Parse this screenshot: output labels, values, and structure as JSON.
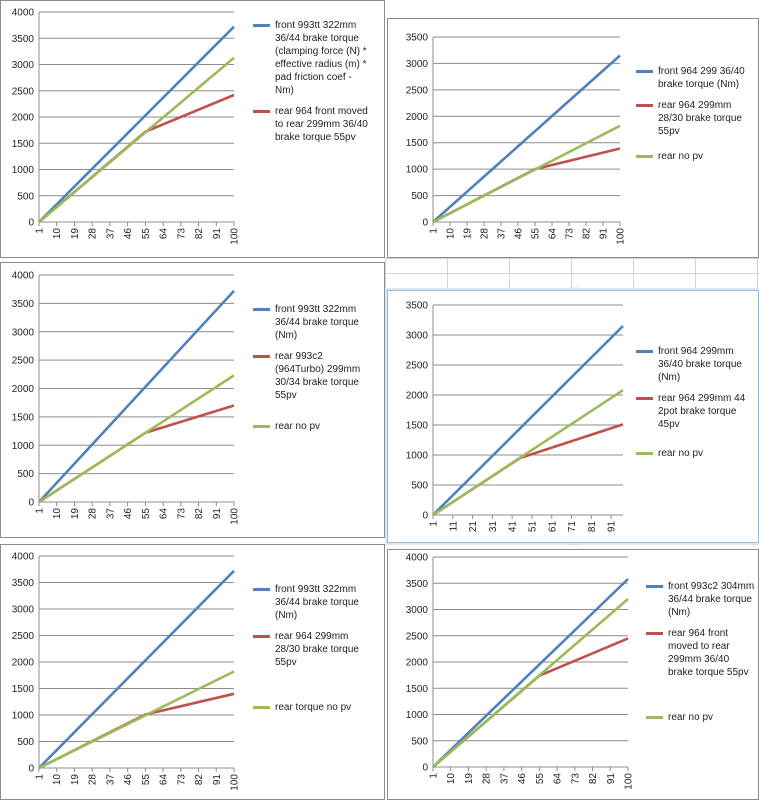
{
  "colors": {
    "front": "#4f81bd",
    "rear": "#c0504d",
    "nopv": "#9bbb59",
    "grid": "#8c8c8c"
  },
  "handle_glyph": "····",
  "chart_data": [
    {
      "type": "line",
      "ylim": [
        0,
        4000
      ],
      "yticks": [
        0,
        500,
        1000,
        1500,
        2000,
        2500,
        3000,
        3500,
        4000
      ],
      "xticks": [
        "1",
        "10",
        "19",
        "28",
        "37",
        "46",
        "55",
        "64",
        "73",
        "82",
        "91",
        "100"
      ],
      "x": [
        1,
        100
      ],
      "series": [
        {
          "name": "front 993tt 322mm 36/44 brake torque (clamping force (N) * effective radius  (m) * pad friction coef - Nm)",
          "color": "#4f81bd",
          "x": [
            1,
            100
          ],
          "y": [
            0,
            3720
          ]
        },
        {
          "name": "rear 964 front moved to rear 299mm 36/40 brake torque 55pv",
          "color": "#c0504d",
          "x": [
            1,
            55,
            100
          ],
          "y": [
            0,
            1720,
            2420
          ]
        },
        {
          "name": "",
          "color": "#9bbb59",
          "x": [
            1,
            100
          ],
          "y": [
            0,
            3130
          ]
        }
      ]
    },
    {
      "type": "line",
      "ylim": [
        0,
        3500
      ],
      "yticks": [
        0,
        500,
        1000,
        1500,
        2000,
        2500,
        3000,
        3500
      ],
      "xticks": [
        "1",
        "10",
        "19",
        "28",
        "37",
        "46",
        "55",
        "64",
        "73",
        "82",
        "91",
        "100"
      ],
      "x": [
        1,
        100
      ],
      "series": [
        {
          "name": "front 964 299 36/40 brake torque (Nm)",
          "color": "#4f81bd",
          "x": [
            1,
            100
          ],
          "y": [
            0,
            3150
          ]
        },
        {
          "name": "rear 964 299mm 28/30 brake torque 55pv",
          "color": "#c0504d",
          "x": [
            1,
            55,
            100
          ],
          "y": [
            0,
            1000,
            1390
          ]
        },
        {
          "name": "rear no pv",
          "color": "#9bbb59",
          "x": [
            1,
            100
          ],
          "y": [
            0,
            1820
          ]
        }
      ]
    },
    {
      "type": "line",
      "ylim": [
        0,
        4000
      ],
      "yticks": [
        0,
        500,
        1000,
        1500,
        2000,
        2500,
        3000,
        3500,
        4000
      ],
      "xticks": [
        "1",
        "10",
        "19",
        "28",
        "37",
        "46",
        "55",
        "64",
        "73",
        "82",
        "91",
        "100"
      ],
      "x": [
        1,
        100
      ],
      "series": [
        {
          "name": "front 993tt 322mm 36/44 brake torque (Nm)",
          "color": "#4f81bd",
          "x": [
            1,
            100
          ],
          "y": [
            0,
            3720
          ]
        },
        {
          "name": "rear 993c2 (964Turbo) 299mm 30/34 brake torque 55pv",
          "color": "#c0504d",
          "x": [
            1,
            55,
            100
          ],
          "y": [
            0,
            1220,
            1700
          ]
        },
        {
          "name": "rear no pv",
          "color": "#9bbb59",
          "x": [
            1,
            100
          ],
          "y": [
            0,
            2230
          ]
        }
      ]
    },
    {
      "type": "line",
      "ylim": [
        0,
        3500
      ],
      "yticks": [
        0,
        500,
        1000,
        1500,
        2000,
        2500,
        3000,
        3500
      ],
      "xticks": [
        "1",
        "11",
        "21",
        "31",
        "41",
        "51",
        "61",
        "71",
        "81",
        "91"
      ],
      "x": [
        1,
        97
      ],
      "series": [
        {
          "name": "front 964 299mm 36/40 brake torque (Nm)",
          "color": "#4f81bd",
          "x": [
            1,
            97
          ],
          "y": [
            0,
            3150
          ]
        },
        {
          "name": "rear 964 299mm 44 2pot brake torque 45pv",
          "color": "#c0504d",
          "x": [
            1,
            45,
            97
          ],
          "y": [
            0,
            950,
            1510
          ]
        },
        {
          "name": "rear no pv",
          "color": "#9bbb59",
          "x": [
            1,
            97
          ],
          "y": [
            0,
            2080
          ]
        }
      ]
    },
    {
      "type": "line",
      "ylim": [
        0,
        4000
      ],
      "yticks": [
        0,
        500,
        1000,
        1500,
        2000,
        2500,
        3000,
        3500,
        4000
      ],
      "xticks": [
        "1",
        "10",
        "19",
        "28",
        "37",
        "46",
        "55",
        "64",
        "73",
        "82",
        "91",
        "100"
      ],
      "x": [
        1,
        100
      ],
      "series": [
        {
          "name": "front 993tt 322mm 36/44 brake torque (Nm)",
          "color": "#4f81bd",
          "x": [
            1,
            100
          ],
          "y": [
            0,
            3720
          ]
        },
        {
          "name": "rear 964 299mm 28/30 brake torque 55pv",
          "color": "#c0504d",
          "x": [
            1,
            55,
            100
          ],
          "y": [
            0,
            1010,
            1400
          ]
        },
        {
          "name": "rear torque no pv",
          "color": "#9bbb59",
          "x": [
            1,
            100
          ],
          "y": [
            0,
            1820
          ]
        }
      ]
    },
    {
      "type": "line",
      "ylim": [
        0,
        4000
      ],
      "yticks": [
        0,
        500,
        1000,
        1500,
        2000,
        2500,
        3000,
        3500,
        4000
      ],
      "xticks": [
        "1",
        "10",
        "19",
        "28",
        "37",
        "46",
        "55",
        "64",
        "73",
        "82",
        "91",
        "100"
      ],
      "x": [
        1,
        100
      ],
      "series": [
        {
          "name": "front 993c2 304mm 36/44 brake torque (Nm)",
          "color": "#4f81bd",
          "x": [
            1,
            100
          ],
          "y": [
            0,
            3580
          ]
        },
        {
          "name": "rear 964 front moved to rear 299mm 36/40 brake torque 55pv",
          "color": "#c0504d",
          "x": [
            1,
            55,
            100
          ],
          "y": [
            0,
            1740,
            2450
          ]
        },
        {
          "name": "rear no pv",
          "color": "#9bbb59",
          "x": [
            1,
            100
          ],
          "y": [
            0,
            3200
          ]
        }
      ]
    }
  ]
}
